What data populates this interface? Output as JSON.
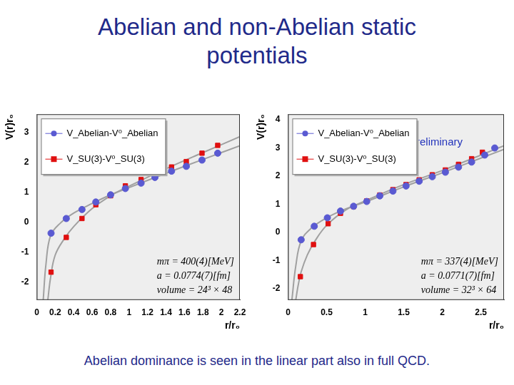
{
  "title": "Abelian and non-Abelian static potentials",
  "caption": "Abelian dominance is seen in the linear part also in full QCD.",
  "chart_data": [
    {
      "type": "scatter",
      "x_label": "r/r₀",
      "y_label": "V(r)r₀",
      "xlim": [
        0,
        2.2
      ],
      "xticks": [
        0,
        0.2,
        0.4,
        0.6,
        0.8,
        1,
        1.2,
        1.4,
        1.6,
        1.8,
        2,
        2.2
      ],
      "ylim": [
        -2.6,
        3.6
      ],
      "yticks": [
        -2,
        -1,
        0,
        1,
        2,
        3
      ],
      "grid": false,
      "legend": "upper left",
      "annotations": [
        "mπ = 400(4)[MeV]",
        "a = 0.0774(7)[fm]",
        "volume = 24³ × 48"
      ],
      "series": [
        {
          "name": "V_Abelian-V⁰_Abelian",
          "color": "#5a5ad2",
          "marker": "circle",
          "line_style": "none",
          "x": [
            0.155,
            0.32,
            0.49,
            0.64,
            0.8,
            0.96,
            1.13,
            1.28,
            1.46,
            1.62,
            1.79,
            1.96
          ],
          "values": [
            -0.37,
            0.12,
            0.42,
            0.67,
            0.91,
            1.12,
            1.3,
            1.49,
            1.7,
            1.86,
            2.07,
            2.3
          ]
        },
        {
          "name": "V_SU(3)-V⁰_SU(3)",
          "color": "#e01010",
          "marker": "square",
          "line_style": "none",
          "x": [
            0.155,
            0.32,
            0.49,
            0.64,
            0.8,
            0.96,
            1.13,
            1.28,
            1.46,
            1.62,
            1.79,
            1.96
          ],
          "values": [
            -1.67,
            -0.51,
            0.12,
            0.58,
            0.88,
            1.21,
            1.42,
            1.67,
            1.84,
            2.02,
            2.3,
            2.56
          ]
        },
        {
          "color": "#a0a0a0",
          "marker": "none",
          "line_style": "solid",
          "x": [
            0.07,
            0.1,
            0.15,
            0.25,
            0.4,
            0.6,
            0.8,
            1.0,
            1.4,
            1.8,
            2.2
          ],
          "values": [
            -2.6,
            -1.4,
            -0.45,
            -0.05,
            0.3,
            0.62,
            0.91,
            1.15,
            1.63,
            2.09,
            2.55
          ]
        },
        {
          "color": "#a0a0a0",
          "marker": "none",
          "line_style": "solid",
          "x": [
            0.12,
            0.15,
            0.2,
            0.3,
            0.4,
            0.6,
            0.8,
            1.0,
            1.4,
            1.8,
            2.2
          ],
          "values": [
            -2.6,
            -1.85,
            -1.1,
            -0.55,
            -0.15,
            0.45,
            0.88,
            1.2,
            1.78,
            2.32,
            2.85
          ]
        }
      ]
    },
    {
      "type": "scatter",
      "x_label": "r/r₀",
      "y_label": "V(r)r₀",
      "note": "preliminary",
      "xlim": [
        0,
        2.8
      ],
      "xticks": [
        0,
        0.5,
        1,
        1.5,
        2,
        2.5
      ],
      "ylim": [
        -2.4,
        4.2
      ],
      "yticks": [
        -2,
        -1,
        0,
        1,
        2,
        3,
        4
      ],
      "grid": false,
      "legend": "upper left",
      "annotations": [
        "mπ = 337(4)[MeV]",
        "a = 0.0771(7)[fm]",
        "volume = 32³ × 64"
      ],
      "series": [
        {
          "name": "V_Abelian-V⁰_Abelian",
          "color": "#5a5ad2",
          "marker": "circle",
          "line_style": "none",
          "x": [
            0.17,
            0.34,
            0.51,
            0.68,
            0.85,
            1.02,
            1.19,
            1.36,
            1.53,
            1.7,
            1.87,
            2.04,
            2.21,
            2.38,
            2.55,
            2.68
          ],
          "values": [
            -0.26,
            0.22,
            0.52,
            0.76,
            0.93,
            1.1,
            1.3,
            1.47,
            1.65,
            1.82,
            1.98,
            2.14,
            2.32,
            2.5,
            2.75,
            3.0
          ]
        },
        {
          "name": "V_SU(3)-V⁰_SU(3)",
          "color": "#e01010",
          "marker": "square",
          "line_style": "none",
          "x": [
            0.16,
            0.33,
            0.52,
            0.68,
            0.85,
            1.02,
            1.19,
            1.36,
            1.53,
            1.7,
            1.87,
            2.04,
            2.21,
            2.38,
            2.52
          ],
          "values": [
            -1.57,
            -0.43,
            0.31,
            0.68,
            0.92,
            1.12,
            1.33,
            1.52,
            1.7,
            1.87,
            2.05,
            2.22,
            2.42,
            2.62,
            2.85
          ]
        },
        {
          "color": "#a0a0a0",
          "marker": "none",
          "line_style": "solid",
          "x": [
            0.05,
            0.1,
            0.17,
            0.3,
            0.5,
            0.75,
            1.0,
            1.5,
            2.0,
            2.5,
            2.8
          ],
          "values": [
            -2.4,
            -1.2,
            -0.3,
            0.15,
            0.52,
            0.84,
            1.08,
            1.62,
            2.12,
            2.64,
            2.95
          ]
        },
        {
          "color": "#a0a0a0",
          "marker": "none",
          "line_style": "solid",
          "x": [
            0.1,
            0.13,
            0.17,
            0.25,
            0.35,
            0.5,
            0.75,
            1.0,
            1.5,
            2.0,
            2.5,
            2.8
          ],
          "values": [
            -2.4,
            -1.9,
            -1.4,
            -0.8,
            -0.3,
            0.25,
            0.8,
            1.12,
            1.7,
            2.2,
            2.75,
            3.08
          ]
        }
      ]
    }
  ]
}
